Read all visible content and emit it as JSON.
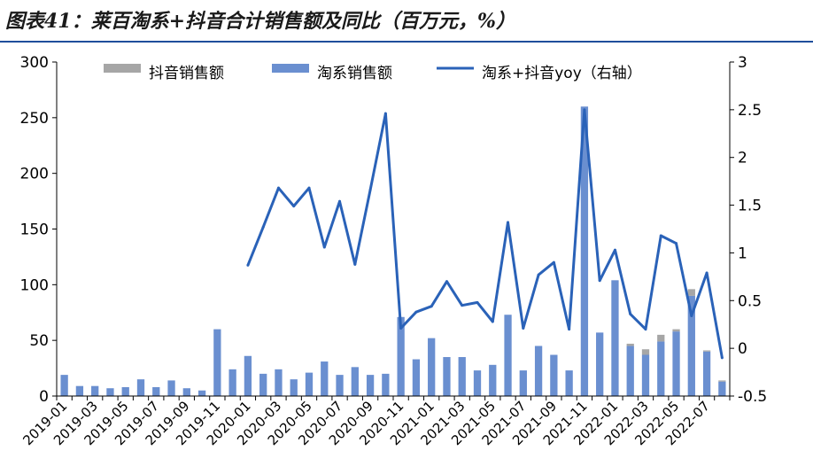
{
  "title": "图表41：莱百淘系+抖音合计销售额及同比（百万元，%）",
  "colors": {
    "douyin": "#a6a6a6",
    "taoxi": "#6a8fd0",
    "yoy": "#2a62b8",
    "title_rule": "#1f4e9b"
  },
  "chart_data": {
    "type": "bar",
    "categories": [
      "2019-01",
      "2019-02",
      "2019-03",
      "2019-04",
      "2019-05",
      "2019-06",
      "2019-07",
      "2019-08",
      "2019-09",
      "2019-10",
      "2019-11",
      "2019-12",
      "2020-01",
      "2020-02",
      "2020-03",
      "2020-04",
      "2020-05",
      "2020-06",
      "2020-07",
      "2020-08",
      "2020-09",
      "2020-10",
      "2020-11",
      "2020-12",
      "2021-01",
      "2021-02",
      "2021-03",
      "2021-04",
      "2021-05",
      "2021-06",
      "2021-07",
      "2021-08",
      "2021-09",
      "2021-10",
      "2021-11",
      "2021-12",
      "2022-01",
      "2022-02",
      "2022-03",
      "2022-04",
      "2022-05",
      "2022-06",
      "2022-07",
      "2022-08"
    ],
    "x_tick_labels": [
      "2019-01",
      "2019-03",
      "2019-05",
      "2019-07",
      "2019-09",
      "2019-11",
      "2020-01",
      "2020-03",
      "2020-05",
      "2020-07",
      "2020-09",
      "2020-11",
      "2021-01",
      "2021-03",
      "2021-05",
      "2021-07",
      "2021-09",
      "2021-11",
      "2022-01",
      "2022-03",
      "2022-05",
      "2022-07"
    ],
    "series": [
      {
        "name": "抖音销售额",
        "kind": "stacked-bar",
        "axis": "left",
        "values": [
          0,
          0,
          0,
          0,
          0,
          0,
          0,
          0,
          0,
          0,
          0,
          0,
          0,
          0,
          0,
          0,
          0,
          0,
          0,
          0,
          0,
          0,
          0,
          0,
          0,
          0,
          0,
          0,
          0,
          0,
          0,
          0,
          0,
          0,
          0,
          0,
          0,
          2,
          5,
          6,
          2,
          6,
          1,
          1
        ]
      },
      {
        "name": "淘系销售额",
        "kind": "stacked-bar",
        "axis": "left",
        "values": [
          19,
          9,
          9,
          7,
          8,
          15,
          8,
          14,
          7,
          5,
          60,
          24,
          36,
          20,
          24,
          15,
          21,
          31,
          19,
          26,
          19,
          20,
          71,
          33,
          52,
          35,
          35,
          23,
          28,
          73,
          23,
          45,
          37,
          23,
          260,
          57,
          104,
          45,
          37,
          49,
          58,
          90,
          40,
          13
        ]
      },
      {
        "name": "淘系+抖音yoy（右轴）",
        "kind": "line",
        "axis": "right",
        "values": [
          null,
          null,
          null,
          null,
          null,
          null,
          null,
          null,
          null,
          null,
          null,
          null,
          0.87,
          1.27,
          1.68,
          1.49,
          1.68,
          1.06,
          1.54,
          0.88,
          1.66,
          2.46,
          0.21,
          0.38,
          0.44,
          0.7,
          0.45,
          0.48,
          0.28,
          1.32,
          0.21,
          0.77,
          0.9,
          0.2,
          2.5,
          0.71,
          1.03,
          0.36,
          0.2,
          1.18,
          1.1,
          0.34,
          0.79,
          -0.1
        ]
      }
    ],
    "y_left": {
      "min": 0,
      "max": 300,
      "ticks": [
        0,
        50,
        100,
        150,
        200,
        250,
        300
      ]
    },
    "y_right": {
      "min": -0.5,
      "max": 3,
      "ticks": [
        "-0.5",
        "0",
        "0.5",
        "1",
        "1.5",
        "2",
        "2.5",
        "3"
      ]
    },
    "legend": {
      "position": "top"
    },
    "grid": false
  }
}
